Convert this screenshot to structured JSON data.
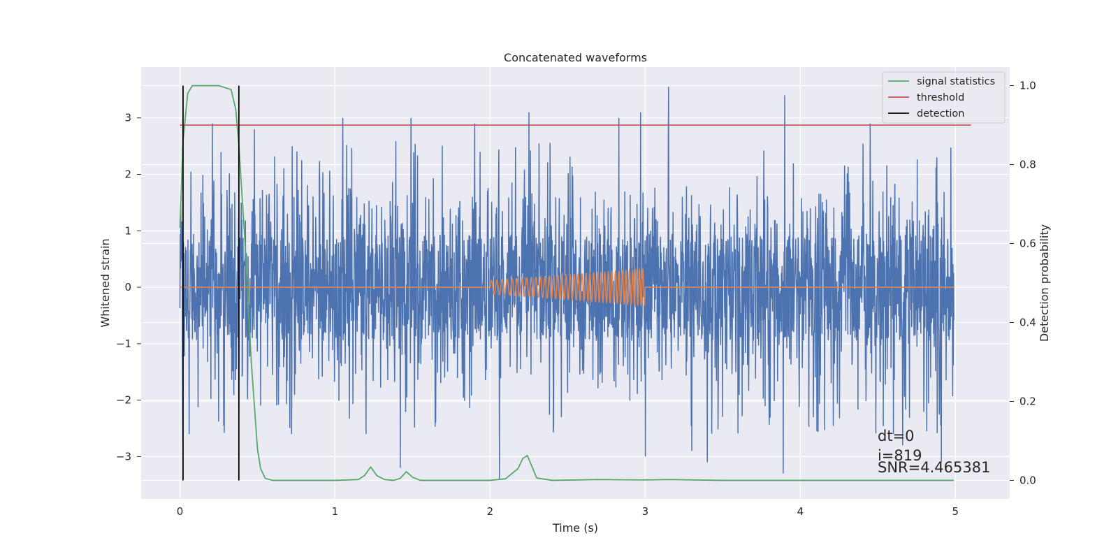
{
  "chart_data": {
    "type": "line",
    "title": "Concatenated waveforms",
    "xlabel": "Time (s)",
    "ylabel": "Whitened strain",
    "y2label": "Detection probability",
    "xlim": [
      -0.25,
      5.35
    ],
    "ylim": [
      -3.75,
      3.9
    ],
    "y2lim": [
      -0.047,
      1.047
    ],
    "x_ticks": [
      "0",
      "1",
      "2",
      "3",
      "4",
      "5"
    ],
    "y_ticks": [
      "3",
      "2",
      "1",
      "0",
      "−1",
      "−2",
      "−3"
    ],
    "y2_ticks": [
      "1.0",
      "0.8",
      "0.6",
      "0.4",
      "0.2",
      "0.0"
    ],
    "grid": true,
    "legend_position": "top-right",
    "colors": {
      "strain": "#4c72b0",
      "injection": "#dd8452",
      "signal_statistics": "#55a868",
      "threshold": "#c44e52",
      "detection": "#000000",
      "background": "#eaeaf2",
      "grid": "#ffffff"
    },
    "series": [
      {
        "name": "signal statistics",
        "axis": "right",
        "x": [
          0.0,
          0.02,
          0.05,
          0.08,
          0.15,
          0.25,
          0.33,
          0.36,
          0.38,
          0.42,
          0.46,
          0.5,
          0.52,
          0.55,
          0.6,
          1.0,
          1.15,
          1.19,
          1.23,
          1.27,
          1.32,
          1.38,
          1.42,
          1.46,
          1.5,
          1.55,
          1.6,
          2.0,
          2.1,
          2.18,
          2.21,
          2.24,
          2.27,
          2.3,
          2.4,
          2.7,
          3.0,
          3.15,
          3.5,
          4.0,
          4.5,
          4.99
        ],
        "values": [
          0.64,
          0.86,
          0.98,
          1.0,
          1.0,
          1.0,
          0.99,
          0.94,
          0.85,
          0.6,
          0.3,
          0.08,
          0.03,
          0.005,
          0.0,
          0.0,
          0.002,
          0.012,
          0.034,
          0.012,
          0.002,
          0.0,
          0.005,
          0.022,
          0.008,
          0.0,
          0.0,
          0.0,
          0.004,
          0.03,
          0.055,
          0.063,
          0.035,
          0.006,
          0.0,
          0.002,
          0.001,
          0.002,
          0.0,
          0.0,
          0.0,
          0.0
        ]
      },
      {
        "name": "threshold",
        "axis": "right",
        "x": [
          0.0,
          5.1
        ],
        "values": [
          0.9,
          0.9
        ]
      },
      {
        "name": "detection",
        "axis": "right",
        "x": [
          0.02,
          0.38
        ],
        "values": [
          1.0,
          1.0
        ]
      }
    ],
    "strain": {
      "x_range": [
        0.0,
        4.99
      ],
      "baseline_amplitude": 0.95,
      "spikes": [
        {
          "x": 0.02,
          "y": -2.8
        },
        {
          "x": 0.06,
          "y": -2.6
        },
        {
          "x": 0.21,
          "y": 2.9
        },
        {
          "x": 0.38,
          "y": -2.2
        },
        {
          "x": 0.48,
          "y": 2.8
        },
        {
          "x": 0.72,
          "y": -2.6
        },
        {
          "x": 1.05,
          "y": 3.0
        },
        {
          "x": 1.2,
          "y": -2.6
        },
        {
          "x": 1.42,
          "y": -3.2
        },
        {
          "x": 1.49,
          "y": 3.0
        },
        {
          "x": 1.65,
          "y": -2.4
        },
        {
          "x": 1.9,
          "y": 2.9
        },
        {
          "x": 2.06,
          "y": -3.4
        },
        {
          "x": 2.25,
          "y": 3.1
        },
        {
          "x": 2.46,
          "y": -2.3
        },
        {
          "x": 2.83,
          "y": 3.0
        },
        {
          "x": 2.97,
          "y": 3.1
        },
        {
          "x": 3.0,
          "y": -3.0
        },
        {
          "x": 3.15,
          "y": 3.55
        },
        {
          "x": 3.3,
          "y": -2.9
        },
        {
          "x": 3.4,
          "y": -3.1
        },
        {
          "x": 3.89,
          "y": -3.3
        },
        {
          "x": 3.9,
          "y": 3.4
        },
        {
          "x": 4.45,
          "y": 2.9
        },
        {
          "x": 4.6,
          "y": -2.6
        },
        {
          "x": 4.66,
          "y": -2.8
        },
        {
          "x": 4.88,
          "y": 2.3
        },
        {
          "x": 4.91,
          "y": -3.1
        }
      ]
    },
    "injection": {
      "x_range": [
        2.0,
        3.0
      ],
      "start_amplitude": 0.12,
      "end_amplitude": 0.32,
      "cycles": 38
    },
    "annotations": [
      "dt=0",
      "i=819",
      "SNR=4.465381"
    ]
  }
}
